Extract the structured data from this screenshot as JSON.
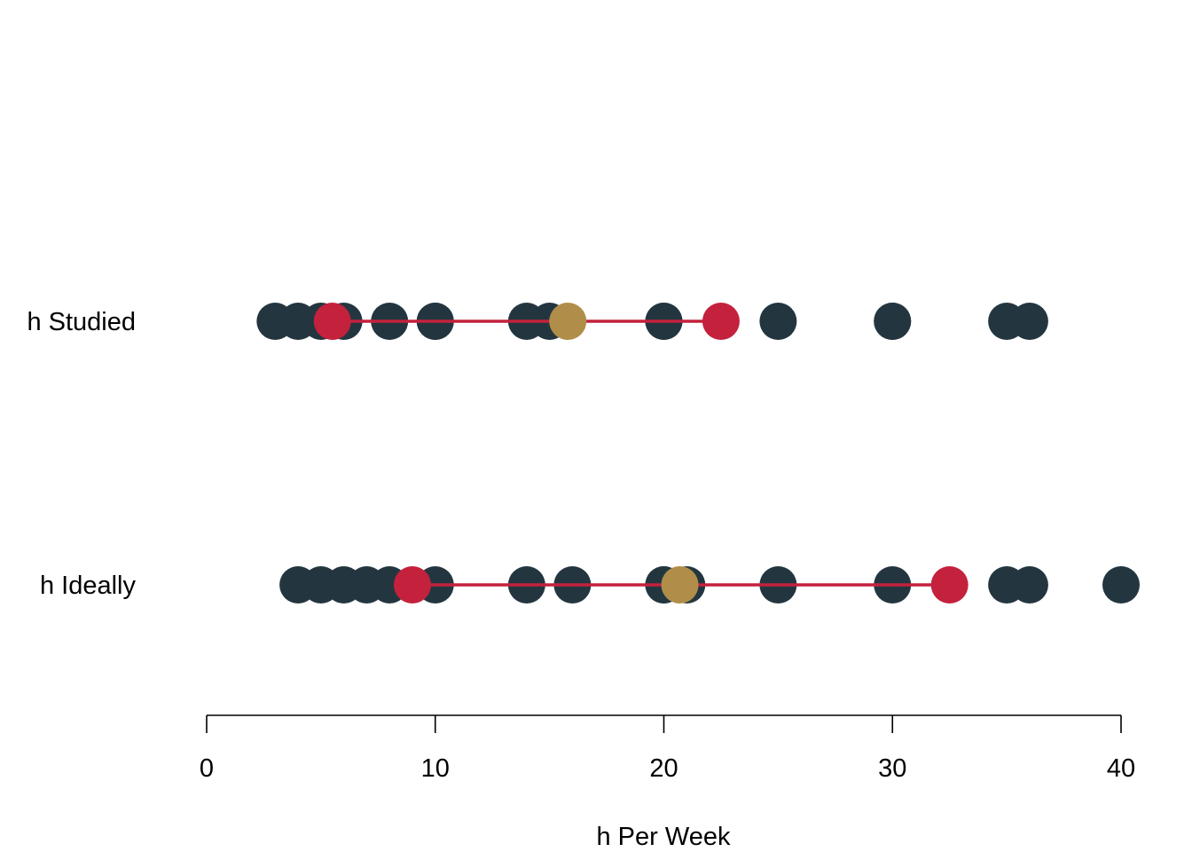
{
  "chart_data": {
    "type": "scatter",
    "title": "",
    "xlabel": "h Per Week",
    "ylabel": "",
    "xlim": [
      0,
      40
    ],
    "xticks": [
      "0",
      "10",
      "20",
      "30",
      "40"
    ],
    "grid": false,
    "legend": "none",
    "colors": {
      "points": "#233640",
      "range_markers": "#c4213d",
      "range_line": "#c4213d",
      "mean_marker": "#b08e4a"
    },
    "rows": [
      {
        "label": "h Studied",
        "points": [
          3,
          4,
          5,
          6,
          8,
          10,
          10,
          14,
          15,
          20,
          20,
          25,
          30,
          30,
          35,
          36
        ],
        "range": [
          5.5,
          22.5
        ],
        "mean": 15.8
      },
      {
        "label": "h Ideally",
        "points": [
          4,
          5,
          6,
          7,
          8,
          10,
          14,
          16,
          20,
          20,
          21,
          25,
          30,
          35,
          36,
          40
        ],
        "range": [
          9,
          32.5
        ],
        "mean": 20.7
      }
    ]
  }
}
